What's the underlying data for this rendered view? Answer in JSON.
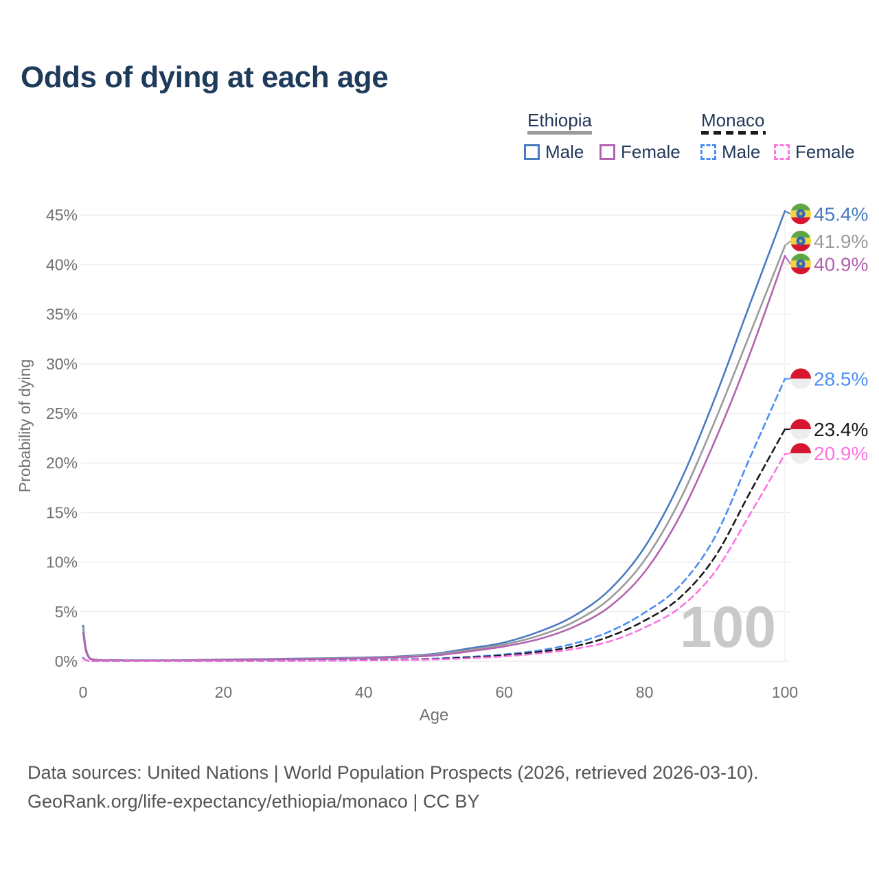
{
  "title": "Odds of dying at each age",
  "legend": {
    "groups": [
      {
        "label": "Ethiopia",
        "underline": "solid",
        "underline_color": "#9b9b9b",
        "items": [
          {
            "label": "Male",
            "box_color": "#4a7bbf",
            "dash": false
          },
          {
            "label": "Female",
            "box_color": "#b163af",
            "dash": false
          }
        ]
      },
      {
        "label": "Monaco",
        "underline": "dashed",
        "underline_color": "#1a1a1a",
        "items": [
          {
            "label": "Male",
            "box_color": "#4c8df2",
            "dash": true
          },
          {
            "label": "Female",
            "box_color": "#fb74e4",
            "dash": true
          }
        ]
      }
    ]
  },
  "chart_data": {
    "type": "line",
    "title": "Odds of dying at each age",
    "xlabel": "Age",
    "ylabel": "Probability of dying",
    "xlim": [
      0,
      100
    ],
    "ylim_pct": [
      0,
      45
    ],
    "x_ticks": [
      0,
      20,
      40,
      60,
      80,
      100
    ],
    "y_tick_labels": [
      "0%",
      "5%",
      "10%",
      "15%",
      "20%",
      "25%",
      "30%",
      "35%",
      "40%",
      "45%"
    ],
    "grid": "horizontal",
    "watermark": "100",
    "legend_position": "top-right",
    "ages": [
      0,
      1,
      5,
      10,
      15,
      20,
      25,
      30,
      35,
      40,
      45,
      50,
      55,
      60,
      65,
      70,
      75,
      80,
      85,
      90,
      95,
      100
    ],
    "series": [
      {
        "name": "Ethiopia Male",
        "country": "Ethiopia",
        "sex": "Male",
        "color": "#4a7bbf",
        "dash": false,
        "flag": "ethiopia",
        "end_label": "45.4%",
        "values_pct": [
          3.6,
          0.3,
          0.12,
          0.1,
          0.12,
          0.18,
          0.22,
          0.27,
          0.32,
          0.38,
          0.5,
          0.75,
          1.3,
          1.9,
          3.0,
          4.6,
          7.2,
          11.5,
          18.0,
          26.5,
          36.0,
          45.4
        ]
      },
      {
        "name": "Ethiopia Both sexes",
        "country": "Ethiopia",
        "sex": "Both",
        "color": "#9b9b9b",
        "dash": false,
        "flag": "ethiopia",
        "end_label": "41.9%",
        "values_pct": [
          3.3,
          0.28,
          0.11,
          0.09,
          0.11,
          0.16,
          0.2,
          0.24,
          0.29,
          0.34,
          0.45,
          0.67,
          1.15,
          1.7,
          2.6,
          4.0,
          6.3,
          10.2,
          16.2,
          24.2,
          33.0,
          41.9
        ]
      },
      {
        "name": "Ethiopia Female",
        "country": "Ethiopia",
        "sex": "Female",
        "color": "#b163af",
        "dash": false,
        "flag": "ethiopia",
        "end_label": "40.9%",
        "values_pct": [
          2.9,
          0.25,
          0.1,
          0.08,
          0.1,
          0.14,
          0.17,
          0.21,
          0.25,
          0.3,
          0.4,
          0.58,
          1.0,
          1.5,
          2.25,
          3.5,
          5.5,
          9.0,
          14.6,
          22.2,
          31.0,
          40.9
        ]
      },
      {
        "name": "Monaco Male",
        "country": "Monaco",
        "sex": "Male",
        "color": "#4c8df2",
        "dash": true,
        "flag": "monaco",
        "end_label": "28.5%",
        "values_pct": [
          0.35,
          0.03,
          0.01,
          0.01,
          0.02,
          0.04,
          0.05,
          0.06,
          0.08,
          0.12,
          0.18,
          0.28,
          0.45,
          0.7,
          1.1,
          1.8,
          3.0,
          4.9,
          7.6,
          12.5,
          20.5,
          28.5
        ]
      },
      {
        "name": "Monaco Both sexes",
        "country": "Monaco",
        "sex": "Both",
        "color": "#1a1a1a",
        "dash": true,
        "flag": "monaco",
        "end_label": "23.4%",
        "values_pct": [
          0.3,
          0.025,
          0.01,
          0.01,
          0.018,
          0.03,
          0.04,
          0.05,
          0.07,
          0.1,
          0.15,
          0.23,
          0.38,
          0.6,
          0.95,
          1.5,
          2.5,
          4.1,
          6.4,
          10.5,
          17.0,
          23.4
        ]
      },
      {
        "name": "Monaco Female",
        "country": "Monaco",
        "sex": "Female",
        "color": "#fb74e4",
        "dash": true,
        "flag": "monaco",
        "end_label": "20.9%",
        "values_pct": [
          0.28,
          0.02,
          0.01,
          0.01,
          0.015,
          0.025,
          0.03,
          0.04,
          0.06,
          0.08,
          0.12,
          0.19,
          0.3,
          0.5,
          0.8,
          1.25,
          2.0,
          3.4,
          5.4,
          9.0,
          14.8,
          20.9
        ]
      }
    ]
  },
  "footer": {
    "line1": "Data sources: United Nations | World Population Prospects (2026, retrieved 2026-03-10).",
    "line2": "GeoRank.org/life-expectancy/ethiopia/monaco | CC BY"
  },
  "colors": {
    "title": "#1f3b5c",
    "axis_text": "#707070",
    "gridline": "#ebebeb",
    "watermark": "#c9c9c9",
    "footer_text": "#545454",
    "ethiopia_flag": {
      "green": "#5fa744",
      "yellow": "#f2d340",
      "red": "#d6152e",
      "emblem_blue": "#2b66c2"
    },
    "monaco_flag": {
      "red": "#d6152e",
      "white": "#ededed"
    }
  }
}
